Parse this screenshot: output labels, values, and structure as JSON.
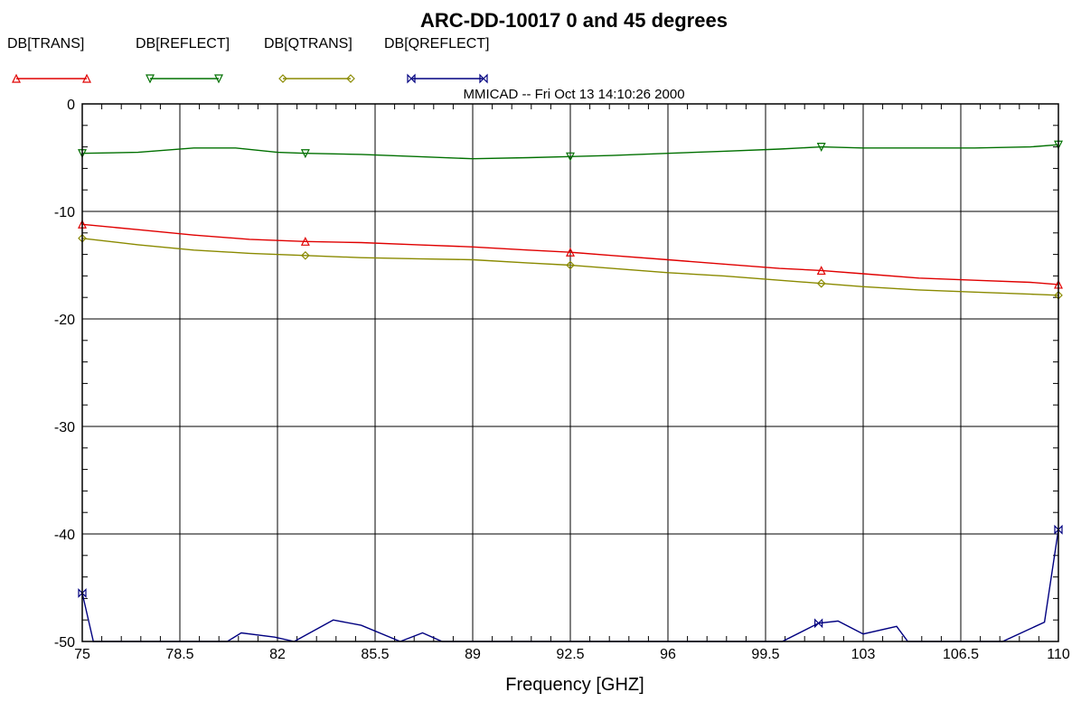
{
  "chart_data": {
    "type": "line",
    "title": "ARC-DD-10017 0 and 45 degrees",
    "subtitle": "MMICAD -- Fri Oct 13 14:10:26 2000",
    "xlabel": "Frequency [GHZ]",
    "ylabel": "",
    "xlim": [
      75,
      110
    ],
    "ylim": [
      -50,
      0
    ],
    "x_ticks": [
      "75",
      "78.5",
      "82",
      "85.5",
      "89",
      "92.5",
      "96",
      "99.5",
      "103",
      "106.5",
      "110"
    ],
    "y_ticks": [
      "0",
      "-10",
      "-20",
      "-30",
      "-40",
      "-50"
    ],
    "grid": true,
    "legend_position": "top-left",
    "series": [
      {
        "name": "DB[TRANS]",
        "color": "#e00000",
        "marker": "triangle-up",
        "x": [
          75,
          77,
          79,
          81,
          83,
          85,
          87,
          89,
          91,
          92.5,
          94,
          96,
          98,
          100,
          101.5,
          103,
          105,
          107,
          109,
          110
        ],
        "y": [
          -11.2,
          -11.7,
          -12.2,
          -12.6,
          -12.8,
          -12.9,
          -13.1,
          -13.3,
          -13.6,
          -13.8,
          -14.1,
          -14.5,
          -14.9,
          -15.3,
          -15.5,
          -15.8,
          -16.2,
          -16.4,
          -16.6,
          -16.8
        ],
        "marker_x": [
          75,
          83,
          92.5,
          101.5,
          110
        ]
      },
      {
        "name": "DB[REFLECT]",
        "color": "#007000",
        "marker": "triangle-down",
        "x": [
          75,
          77,
          79,
          80.5,
          82,
          83,
          85,
          87,
          89,
          91,
          92.5,
          94,
          96,
          98,
          100,
          101.5,
          103,
          105,
          107,
          109,
          110
        ],
        "y": [
          -4.6,
          -4.5,
          -4.1,
          -4.1,
          -4.5,
          -4.6,
          -4.7,
          -4.9,
          -5.1,
          -5.0,
          -4.9,
          -4.8,
          -4.6,
          -4.4,
          -4.2,
          -4.0,
          -4.1,
          -4.1,
          -4.1,
          -4.0,
          -3.8
        ],
        "marker_x": [
          75,
          83,
          92.5,
          101.5,
          110
        ]
      },
      {
        "name": "DB[QTRANS]",
        "color": "#8a8a00",
        "marker": "diamond",
        "x": [
          75,
          77,
          79,
          81,
          83,
          85,
          87,
          89,
          91,
          92.5,
          94,
          96,
          98,
          100,
          101.5,
          103,
          105,
          107,
          109,
          110
        ],
        "y": [
          -12.5,
          -13.1,
          -13.6,
          -13.9,
          -14.1,
          -14.3,
          -14.4,
          -14.5,
          -14.8,
          -15.0,
          -15.3,
          -15.7,
          -16.0,
          -16.4,
          -16.7,
          -17.0,
          -17.3,
          -17.5,
          -17.7,
          -17.8
        ],
        "marker_x": [
          75,
          83,
          92.5,
          101.5,
          110
        ]
      },
      {
        "name": "DB[QREFLECT]",
        "color": "#000080",
        "marker": "bowtie",
        "x": [
          75,
          75.4,
          80.2,
          80.7,
          81.9,
          82.6,
          84,
          85,
          86.4,
          87.2,
          87.9,
          100.1,
          101.4,
          102.1,
          103,
          104.2,
          104.6,
          108,
          109.5,
          110
        ],
        "y": [
          -45.5,
          -50,
          -50,
          -49.2,
          -49.6,
          -50,
          -48.0,
          -48.5,
          -50,
          -49.2,
          -50,
          -50,
          -48.3,
          -48.1,
          -49.3,
          -48.6,
          -50,
          -50,
          -48.2,
          -39.6
        ],
        "marker_x": [
          75,
          101.4,
          110
        ]
      }
    ]
  }
}
